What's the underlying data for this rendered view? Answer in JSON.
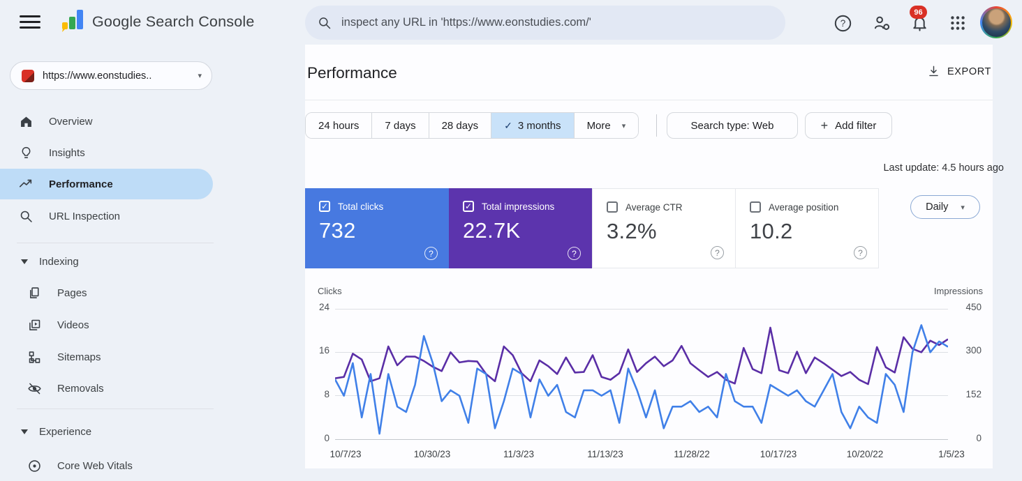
{
  "ui": {
    "caret_down": "▾",
    "check": "✓",
    "plus": "+"
  },
  "header": {
    "app_title": "Google Search Console",
    "search_value": "inspect any URL in 'https://www.eonstudies.com/'",
    "notification_count": "96",
    "accent_colors": {
      "blue": "#4285f4",
      "red": "#ea4335",
      "yellow": "#fbbc05",
      "green": "#34a853"
    }
  },
  "sidebar": {
    "property_label": "https://www.eonstudies..",
    "items": [
      {
        "label": "Overview"
      },
      {
        "label": "Insights"
      },
      {
        "label": "Performance",
        "selected": true
      },
      {
        "label": "URL Inspection"
      }
    ],
    "sections": [
      {
        "label": "Indexing",
        "items": [
          "Pages",
          "Videos",
          "Sitemaps",
          "Removals"
        ]
      },
      {
        "label": "Experience",
        "items": [
          "Core Web Vitals"
        ]
      }
    ]
  },
  "main": {
    "title": "Performance",
    "export_label": "EXPORT",
    "date_tabs": [
      "24 hours",
      "7 days",
      "28 days",
      "3 months"
    ],
    "selected_tab": "3 months",
    "more_label": "More",
    "search_type_label": "Search type: Web",
    "add_filter_label": "Add filter",
    "last_update": "Last update: 4.5 hours ago",
    "interval_label": "Daily"
  },
  "cards": [
    {
      "label": "Total clicks",
      "value": "732",
      "checked": true,
      "color": "#4779e0"
    },
    {
      "label": "Total impressions",
      "value": "22.7K",
      "checked": true,
      "color": "#5c34ad"
    },
    {
      "label": "Average CTR",
      "value": "3.2%",
      "checked": false,
      "color": "#ffffff"
    },
    {
      "label": "Average position",
      "value": "10.2",
      "checked": false,
      "color": "#ffffff"
    }
  ],
  "chart_data": {
    "type": "line",
    "title": "Performance over time",
    "grid": true,
    "legend": "none",
    "left_axis": {
      "label": "Clicks",
      "ticks": [
        "24",
        "16",
        "8",
        "0"
      ],
      "max": 24
    },
    "right_axis": {
      "label": "Impressions",
      "ticks": [
        "450",
        "300",
        "152",
        "0"
      ],
      "max": 450
    },
    "x_labels": [
      "10/7/23",
      "10/30/23",
      "11/3/23",
      "11/13/23",
      "11/28/22",
      "10/17/23",
      "10/20/22",
      "1/5/23"
    ],
    "series": [
      {
        "name": "Clicks",
        "axis": "left",
        "color": "#4080e8",
        "values": [
          11,
          8,
          14,
          4,
          12,
          1,
          12,
          6,
          5,
          10,
          19,
          14,
          7,
          9,
          8,
          3,
          13,
          12,
          2,
          7,
          13,
          12,
          4,
          11,
          8,
          10,
          5,
          4,
          9,
          9,
          8,
          9,
          3,
          13,
          9,
          4,
          9,
          2,
          6,
          6,
          7,
          5,
          6,
          4,
          12,
          7,
          6,
          6,
          3,
          10,
          9,
          8,
          9,
          7,
          6,
          9,
          12,
          5,
          2,
          6,
          4,
          3,
          12,
          10,
          5,
          16,
          21,
          16,
          18,
          17
        ]
      },
      {
        "name": "Impressions",
        "axis": "right",
        "color": "#5a2ea6",
        "values": [
          210,
          215,
          295,
          275,
          200,
          210,
          320,
          255,
          285,
          285,
          270,
          250,
          235,
          300,
          265,
          270,
          268,
          225,
          200,
          320,
          290,
          228,
          200,
          272,
          252,
          225,
          282,
          230,
          232,
          290,
          215,
          205,
          228,
          310,
          232,
          262,
          285,
          252,
          272,
          322,
          262,
          238,
          215,
          232,
          205,
          192,
          315,
          242,
          228,
          385,
          238,
          228,
          302,
          228,
          282,
          262,
          240,
          218,
          232,
          205,
          190,
          318,
          248,
          230,
          352,
          312,
          300,
          340,
          325,
          345
        ]
      }
    ]
  }
}
